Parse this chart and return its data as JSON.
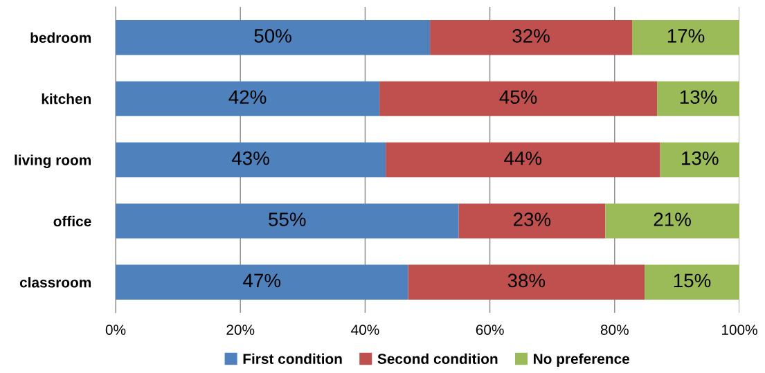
{
  "chart_data": {
    "type": "bar",
    "orientation": "horizontal",
    "stacked": true,
    "categories": [
      "bedroom",
      "kitchen",
      "living room",
      "office",
      "classroom"
    ],
    "series": [
      {
        "name": "First condition",
        "color": "#4f81bd",
        "values": [
          50.4,
          42.3,
          43.3,
          55.0,
          46.9
        ],
        "value_labels": [
          "50%",
          "42%",
          "43%",
          "55%",
          "47%"
        ]
      },
      {
        "name": "Second condition",
        "color": "#c0504d",
        "values": [
          32.4,
          44.5,
          44.0,
          23.5,
          37.9
        ],
        "value_labels": [
          "32%",
          "45%",
          "44%",
          "23%",
          "38%"
        ]
      },
      {
        "name": "No preference",
        "color": "#9bbb59",
        "values": [
          17.2,
          13.2,
          12.7,
          21.5,
          15.2
        ],
        "value_labels": [
          "17%",
          "13%",
          "13%",
          "21%",
          "15%"
        ]
      }
    ],
    "xlim": [
      0,
      100
    ],
    "xticks": [
      {
        "value": 0,
        "label": "0%"
      },
      {
        "value": 20,
        "label": "20%"
      },
      {
        "value": 40,
        "label": "40%"
      },
      {
        "value": 60,
        "label": "60%"
      },
      {
        "value": 80,
        "label": "80%"
      },
      {
        "value": 100,
        "label": "100%"
      }
    ],
    "grid": "x",
    "legend": "bottom"
  }
}
